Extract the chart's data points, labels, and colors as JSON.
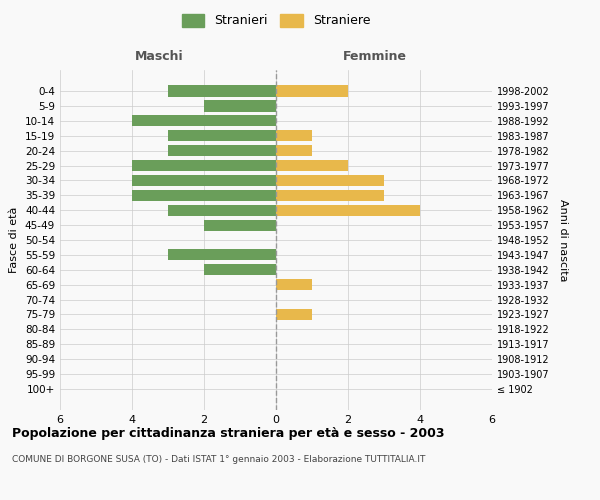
{
  "age_groups": [
    "100+",
    "95-99",
    "90-94",
    "85-89",
    "80-84",
    "75-79",
    "70-74",
    "65-69",
    "60-64",
    "55-59",
    "50-54",
    "45-49",
    "40-44",
    "35-39",
    "30-34",
    "25-29",
    "20-24",
    "15-19",
    "10-14",
    "5-9",
    "0-4"
  ],
  "birth_years": [
    "≤ 1902",
    "1903-1907",
    "1908-1912",
    "1913-1917",
    "1918-1922",
    "1923-1927",
    "1928-1932",
    "1933-1937",
    "1938-1942",
    "1943-1947",
    "1948-1952",
    "1953-1957",
    "1958-1962",
    "1963-1967",
    "1968-1972",
    "1973-1977",
    "1978-1982",
    "1983-1987",
    "1988-1992",
    "1993-1997",
    "1998-2002"
  ],
  "maschi": [
    0,
    0,
    0,
    0,
    0,
    0,
    0,
    0,
    2,
    3,
    0,
    2,
    3,
    4,
    4,
    4,
    3,
    3,
    4,
    2,
    3
  ],
  "femmine": [
    0,
    0,
    0,
    0,
    0,
    1,
    0,
    1,
    0,
    0,
    0,
    0,
    4,
    3,
    3,
    2,
    1,
    1,
    0,
    0,
    2
  ],
  "maschi_color": "#6a9e5a",
  "femmine_color": "#e8b84b",
  "grid_color": "#cccccc",
  "center_line_color": "#999999",
  "title": "Popolazione per cittadinanza straniera per età e sesso - 2003",
  "subtitle": "COMUNE DI BORGONE SUSA (TO) - Dati ISTAT 1° gennaio 2003 - Elaborazione TUTTITALIA.IT",
  "xlabel_left": "Maschi",
  "xlabel_right": "Femmine",
  "ylabel_left": "Fasce di età",
  "ylabel_right": "Anni di nascita",
  "legend_stranieri": "Stranieri",
  "legend_straniere": "Straniere",
  "xlim": 6,
  "background_color": "#f9f9f9"
}
